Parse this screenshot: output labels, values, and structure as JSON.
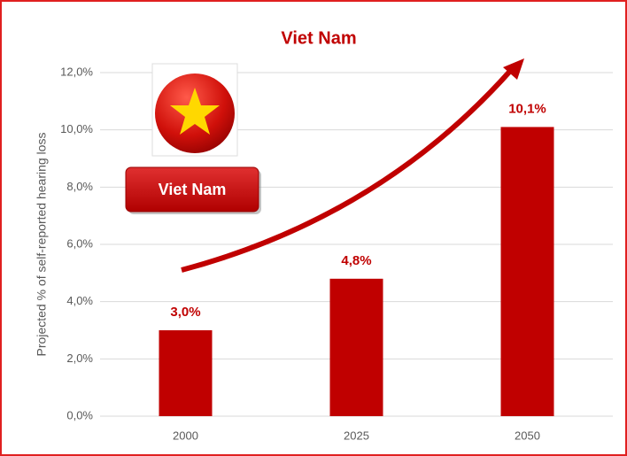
{
  "chart_data": {
    "type": "bar",
    "title": "Viet Nam",
    "y_label": "Projected % of self-reported hearing loss",
    "annotation": "Viet Nam",
    "categories": [
      "2000",
      "2025",
      "2050"
    ],
    "values": [
      3.0,
      4.8,
      10.1
    ],
    "value_labels": [
      "3,0%",
      "4,8%",
      "10,1%"
    ],
    "color": "#c00000",
    "ylim": [
      0,
      12
    ],
    "yticks": [
      {
        "value": 0,
        "label": "0,0%"
      },
      {
        "value": 2,
        "label": "2,0%"
      },
      {
        "value": 4,
        "label": "4,0%"
      },
      {
        "value": 6,
        "label": "6,0%"
      },
      {
        "value": 8,
        "label": "8,0%"
      },
      {
        "value": 10,
        "label": "10,0%"
      },
      {
        "value": 12,
        "label": "12,0%"
      }
    ],
    "grid": true
  }
}
